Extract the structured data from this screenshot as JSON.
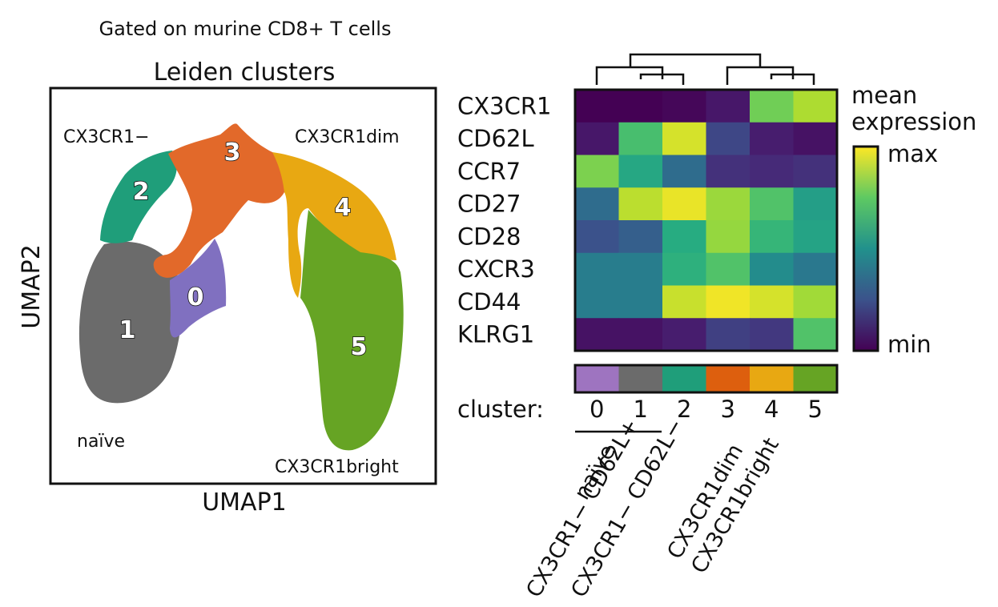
{
  "header": "Gated on murine CD8+ T cells",
  "umap": {
    "title": "Leiden clusters",
    "xlabel": "UMAP1",
    "ylabel": "UMAP2",
    "annotations": [
      "CX3CR1−",
      "CX3CR1dim",
      "naïve",
      "CX3CR1bright"
    ],
    "cluster_labels": [
      "0",
      "1",
      "2",
      "3",
      "4",
      "5"
    ]
  },
  "heatmap": {
    "colorbar_title": [
      "mean",
      "expression"
    ],
    "colorbar_max": "max",
    "colorbar_min": "min",
    "cluster_axis_label": "cluster:",
    "groups": [
      "naïve",
      "CX3CR1− CD62L+",
      "CX3CR1− CD62L−",
      "CX3CR1dim",
      "CX3CR1bright"
    ]
  },
  "chart_data": [
    {
      "type": "scatter",
      "title": "Leiden clusters",
      "xlabel": "UMAP1",
      "ylabel": "UMAP2",
      "series": [
        {
          "name": "0",
          "color": "#8070c0"
        },
        {
          "name": "1",
          "color": "#6b6b6b"
        },
        {
          "name": "2",
          "color": "#1f9e7a"
        },
        {
          "name": "3",
          "color": "#e2692a"
        },
        {
          "name": "4",
          "color": "#e8a812"
        },
        {
          "name": "5",
          "color": "#66a424"
        }
      ]
    },
    {
      "type": "heatmap",
      "rows": [
        "CX3CR1",
        "CD62L",
        "CCR7",
        "CD27",
        "CD28",
        "CXCR3",
        "CD44",
        "KLRG1"
      ],
      "columns": [
        "0",
        "1",
        "2",
        "3",
        "4",
        "5"
      ],
      "column_colors": [
        "#9e74c0",
        "#6b6b6b",
        "#1f9e7a",
        "#dd5f0e",
        "#e8a812",
        "#66a424"
      ],
      "colormap": "viridis",
      "values": [
        [
          0.0,
          0.0,
          0.02,
          0.08,
          0.78,
          0.88
        ],
        [
          0.08,
          0.7,
          0.94,
          0.22,
          0.1,
          0.06
        ],
        [
          0.8,
          0.6,
          0.35,
          0.16,
          0.14,
          0.16
        ],
        [
          0.35,
          0.9,
          0.97,
          0.85,
          0.72,
          0.56
        ],
        [
          0.25,
          0.3,
          0.62,
          0.84,
          0.66,
          0.58
        ],
        [
          0.42,
          0.42,
          0.64,
          0.72,
          0.48,
          0.4
        ],
        [
          0.42,
          0.42,
          0.92,
          0.98,
          0.94,
          0.86
        ],
        [
          0.06,
          0.06,
          0.1,
          0.2,
          0.18,
          0.72
        ]
      ]
    }
  ]
}
